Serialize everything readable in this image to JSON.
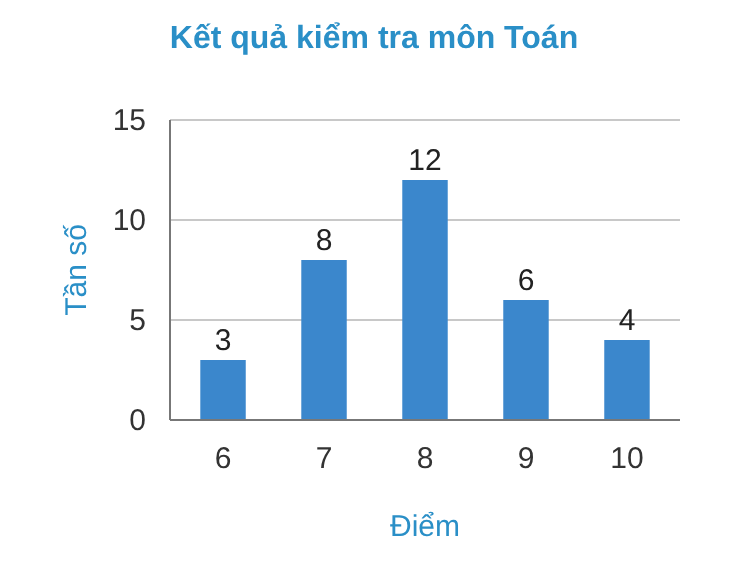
{
  "chart_data": {
    "type": "bar",
    "title": "Kết quả kiểm tra môn Toán",
    "xlabel": "Điểm",
    "ylabel": "Tần số",
    "categories": [
      "6",
      "7",
      "8",
      "9",
      "10"
    ],
    "values": [
      3,
      8,
      12,
      6,
      4
    ],
    "color": "#3b87cc",
    "ylim": [
      0,
      15
    ],
    "yticks": [
      0,
      5,
      10,
      15
    ],
    "grid": "y",
    "data_labels": true
  }
}
